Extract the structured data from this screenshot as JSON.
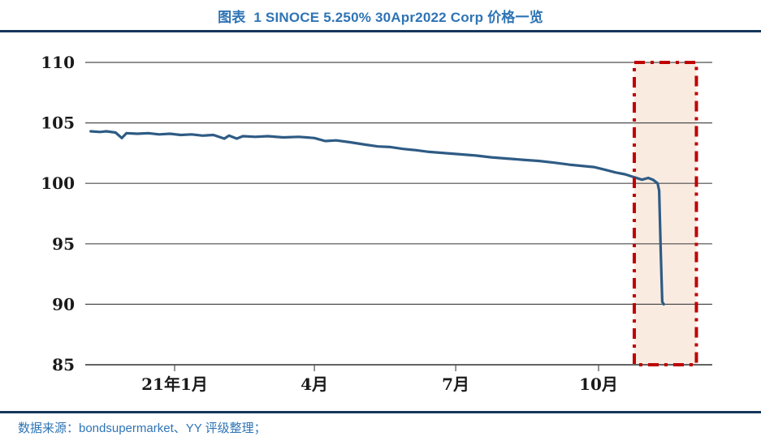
{
  "header": {
    "title": "图表  1 SINOCE 5.250% 30Apr2022 Corp 价格一览"
  },
  "footer": {
    "source_note": "数据来源：bondsupermarket、YY 评级整理；"
  },
  "colors": {
    "title_blue": "#2E74B5",
    "divider_navy": "#14365A",
    "line_blue": "#2E5B84",
    "grid_gray": "#4D4D4D",
    "highlight_red": "#C00000",
    "highlight_fill": "#FAEBE1",
    "axis_text": "#1A1A1A"
  },
  "chart_data": {
    "type": "line",
    "title": "图表 1 SINOCE 5.250% 30Apr2022 Corp 价格一览",
    "xlabel": "",
    "ylabel": "",
    "ylim": [
      85,
      110
    ],
    "yticks": [
      110,
      105,
      100,
      95,
      90,
      85
    ],
    "xticks": [
      {
        "date": "2021-01-01",
        "label": "21年1月"
      },
      {
        "date": "2021-04-01",
        "label": "4月"
      },
      {
        "date": "2021-07-01",
        "label": "7月"
      },
      {
        "date": "2021-10-01",
        "label": "10月"
      }
    ],
    "grid": "horizontal",
    "legend": "none",
    "series": [
      {
        "name": "SINOCE 5.250% 30Apr2022 Corp",
        "color": "#2E5B84",
        "points": [
          [
            "2020-11-08",
            104.3
          ],
          [
            "2020-11-14",
            104.25
          ],
          [
            "2020-11-18",
            104.3
          ],
          [
            "2020-11-24",
            104.2
          ],
          [
            "2020-11-28",
            103.75
          ],
          [
            "2020-12-01",
            104.15
          ],
          [
            "2020-12-08",
            104.1
          ],
          [
            "2020-12-15",
            104.15
          ],
          [
            "2020-12-22",
            104.05
          ],
          [
            "2020-12-29",
            104.1
          ],
          [
            "2021-01-05",
            104.0
          ],
          [
            "2021-01-12",
            104.05
          ],
          [
            "2021-01-19",
            103.95
          ],
          [
            "2021-01-26",
            104.0
          ],
          [
            "2021-02-02",
            103.7
          ],
          [
            "2021-02-05",
            103.95
          ],
          [
            "2021-02-10",
            103.7
          ],
          [
            "2021-02-14",
            103.9
          ],
          [
            "2021-02-22",
            103.85
          ],
          [
            "2021-03-02",
            103.9
          ],
          [
            "2021-03-12",
            103.8
          ],
          [
            "2021-03-22",
            103.85
          ],
          [
            "2021-04-01",
            103.75
          ],
          [
            "2021-04-08",
            103.5
          ],
          [
            "2021-04-15",
            103.55
          ],
          [
            "2021-04-24",
            103.4
          ],
          [
            "2021-05-04",
            103.2
          ],
          [
            "2021-05-12",
            103.05
          ],
          [
            "2021-05-20",
            103.0
          ],
          [
            "2021-05-28",
            102.85
          ],
          [
            "2021-06-05",
            102.75
          ],
          [
            "2021-06-14",
            102.6
          ],
          [
            "2021-06-24",
            102.5
          ],
          [
            "2021-07-04",
            102.4
          ],
          [
            "2021-07-14",
            102.3
          ],
          [
            "2021-07-24",
            102.15
          ],
          [
            "2021-08-03",
            102.05
          ],
          [
            "2021-08-13",
            101.95
          ],
          [
            "2021-08-24",
            101.85
          ],
          [
            "2021-09-03",
            101.7
          ],
          [
            "2021-09-12",
            101.55
          ],
          [
            "2021-09-20",
            101.45
          ],
          [
            "2021-09-28",
            101.35
          ],
          [
            "2021-10-06",
            101.1
          ],
          [
            "2021-10-12",
            100.9
          ],
          [
            "2021-10-18",
            100.75
          ],
          [
            "2021-10-24",
            100.5
          ],
          [
            "2021-10-29",
            100.3
          ],
          [
            "2021-11-02",
            100.45
          ],
          [
            "2021-11-05",
            100.3
          ],
          [
            "2021-11-08",
            100.0
          ],
          [
            "2021-11-09",
            99.4
          ],
          [
            "2021-11-10",
            94.5
          ],
          [
            "2021-11-11",
            90.2
          ],
          [
            "2021-11-12",
            90.0
          ]
        ]
      }
    ],
    "annotations": [
      {
        "type": "highlight-box",
        "x_from": "2021-10-24",
        "x_to": "2021-12-03",
        "y_from": 85,
        "y_to": 110,
        "border_color": "#C00000",
        "border_style": "dash-dot",
        "fill": "#FAEBE1"
      }
    ]
  }
}
